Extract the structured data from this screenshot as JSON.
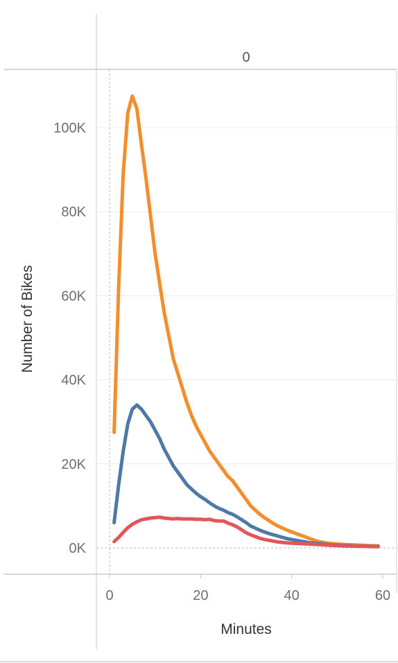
{
  "chart_data": {
    "type": "line",
    "column_header": "0",
    "xlabel": "Minutes",
    "ylabel": "Number of Bikes",
    "xlim": [
      -2,
      63
    ],
    "ylim": [
      0,
      110000
    ],
    "x_ticks": [
      0,
      20,
      40,
      60
    ],
    "x_tick_labels": [
      "0",
      "20",
      "40",
      "60"
    ],
    "y_ticks": [
      0,
      20000,
      40000,
      60000,
      80000,
      100000
    ],
    "y_tick_labels": [
      "0K",
      "20K",
      "40K",
      "60K",
      "80K",
      "100K"
    ],
    "grid": "horizontal",
    "legend": "none",
    "series": [
      {
        "color": "#f28e2b",
        "points": [
          [
            1,
            27500
          ],
          [
            2,
            62000
          ],
          [
            3,
            89000
          ],
          [
            4,
            103500
          ],
          [
            5,
            107500
          ],
          [
            6,
            104500
          ],
          [
            7,
            96000
          ],
          [
            8,
            88000
          ],
          [
            9,
            79000
          ],
          [
            10,
            70000
          ],
          [
            11,
            63000
          ],
          [
            12,
            56000
          ],
          [
            13,
            50500
          ],
          [
            14,
            45000
          ],
          [
            15,
            41500
          ],
          [
            16,
            38000
          ],
          [
            17,
            34500
          ],
          [
            18,
            31500
          ],
          [
            19,
            29000
          ],
          [
            20,
            27000
          ],
          [
            21,
            25000
          ],
          [
            22,
            23000
          ],
          [
            23,
            21500
          ],
          [
            24,
            20000
          ],
          [
            25,
            18500
          ],
          [
            26,
            17000
          ],
          [
            27,
            16000
          ],
          [
            28,
            14500
          ],
          [
            29,
            13000
          ],
          [
            30,
            11500
          ],
          [
            31,
            10000
          ],
          [
            32,
            9000
          ],
          [
            33,
            8000
          ],
          [
            34,
            7200
          ],
          [
            35,
            6500
          ],
          [
            36,
            5800
          ],
          [
            37,
            5200
          ],
          [
            38,
            4700
          ],
          [
            39,
            4200
          ],
          [
            40,
            3800
          ],
          [
            41,
            3400
          ],
          [
            42,
            3000
          ],
          [
            43,
            2600
          ],
          [
            44,
            2200
          ],
          [
            45,
            1800
          ],
          [
            46,
            1500
          ],
          [
            47,
            1300
          ],
          [
            48,
            1100
          ],
          [
            49,
            1000
          ],
          [
            50,
            900
          ],
          [
            52,
            800
          ],
          [
            54,
            700
          ],
          [
            56,
            600
          ],
          [
            58,
            500
          ],
          [
            59,
            500
          ]
        ]
      },
      {
        "color": "#4e79a7",
        "points": [
          [
            1,
            6000
          ],
          [
            2,
            15000
          ],
          [
            3,
            23000
          ],
          [
            4,
            29500
          ],
          [
            5,
            33000
          ],
          [
            6,
            34000
          ],
          [
            7,
            33000
          ],
          [
            8,
            31500
          ],
          [
            9,
            30000
          ],
          [
            10,
            28000
          ],
          [
            11,
            26000
          ],
          [
            12,
            23500
          ],
          [
            13,
            21500
          ],
          [
            14,
            19500
          ],
          [
            15,
            18000
          ],
          [
            16,
            16500
          ],
          [
            17,
            15000
          ],
          [
            18,
            14000
          ],
          [
            19,
            13000
          ],
          [
            20,
            12200
          ],
          [
            21,
            11500
          ],
          [
            22,
            10700
          ],
          [
            23,
            10000
          ],
          [
            24,
            9400
          ],
          [
            25,
            9000
          ],
          [
            26,
            8400
          ],
          [
            27,
            8000
          ],
          [
            28,
            7400
          ],
          [
            29,
            6700
          ],
          [
            30,
            6000
          ],
          [
            31,
            5200
          ],
          [
            32,
            4700
          ],
          [
            33,
            4200
          ],
          [
            34,
            3800
          ],
          [
            35,
            3400
          ],
          [
            36,
            3100
          ],
          [
            37,
            2800
          ],
          [
            38,
            2500
          ],
          [
            39,
            2200
          ],
          [
            40,
            2000
          ],
          [
            41,
            1800
          ],
          [
            42,
            1600
          ],
          [
            43,
            1400
          ],
          [
            44,
            1200
          ],
          [
            45,
            1100
          ],
          [
            46,
            1000
          ],
          [
            48,
            800
          ],
          [
            50,
            650
          ],
          [
            52,
            550
          ],
          [
            54,
            450
          ],
          [
            56,
            400
          ],
          [
            58,
            350
          ],
          [
            59,
            350
          ]
        ]
      },
      {
        "color": "#e15759",
        "points": [
          [
            1,
            1500
          ],
          [
            2,
            2500
          ],
          [
            3,
            3700
          ],
          [
            4,
            4800
          ],
          [
            5,
            5600
          ],
          [
            6,
            6200
          ],
          [
            7,
            6700
          ],
          [
            8,
            6900
          ],
          [
            9,
            7100
          ],
          [
            10,
            7200
          ],
          [
            11,
            7300
          ],
          [
            12,
            7100
          ],
          [
            13,
            7000
          ],
          [
            14,
            6900
          ],
          [
            15,
            7000
          ],
          [
            16,
            6900
          ],
          [
            17,
            6900
          ],
          [
            18,
            6900
          ],
          [
            19,
            6800
          ],
          [
            20,
            6800
          ],
          [
            21,
            6700
          ],
          [
            22,
            6800
          ],
          [
            23,
            6500
          ],
          [
            24,
            6400
          ],
          [
            25,
            6400
          ],
          [
            26,
            5900
          ],
          [
            27,
            5500
          ],
          [
            28,
            5000
          ],
          [
            29,
            4300
          ],
          [
            30,
            3600
          ],
          [
            31,
            3100
          ],
          [
            32,
            2700
          ],
          [
            33,
            2300
          ],
          [
            34,
            2000
          ],
          [
            35,
            1800
          ],
          [
            36,
            1600
          ],
          [
            37,
            1400
          ],
          [
            38,
            1300
          ],
          [
            39,
            1200
          ],
          [
            40,
            1100
          ],
          [
            42,
            1000
          ],
          [
            44,
            900
          ],
          [
            46,
            800
          ],
          [
            48,
            650
          ],
          [
            50,
            550
          ],
          [
            52,
            450
          ],
          [
            54,
            400
          ],
          [
            56,
            350
          ],
          [
            58,
            300
          ],
          [
            59,
            300
          ]
        ]
      }
    ]
  }
}
